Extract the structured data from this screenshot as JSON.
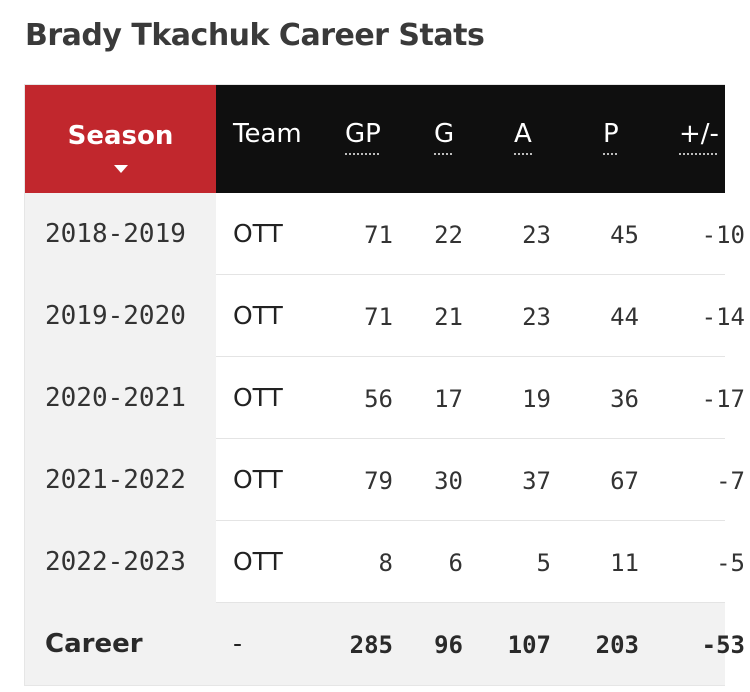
{
  "title": "Brady Tkachuk Career Stats",
  "headers": {
    "season": "Season",
    "team": "Team",
    "gp": "GP",
    "g": "G",
    "a": "A",
    "p": "P",
    "plus_minus": "+/-"
  },
  "rows": [
    {
      "season": "2018-2019",
      "team": "OTT",
      "gp": "71",
      "g": "22",
      "a": "23",
      "p": "45",
      "plus_minus": "-10"
    },
    {
      "season": "2019-2020",
      "team": "OTT",
      "gp": "71",
      "g": "21",
      "a": "23",
      "p": "44",
      "plus_minus": "-14"
    },
    {
      "season": "2020-2021",
      "team": "OTT",
      "gp": "56",
      "g": "17",
      "a": "19",
      "p": "36",
      "plus_minus": "-17"
    },
    {
      "season": "2021-2022",
      "team": "OTT",
      "gp": "79",
      "g": "30",
      "a": "37",
      "p": "67",
      "plus_minus": "-7"
    },
    {
      "season": "2022-2023",
      "team": "OTT",
      "gp": "8",
      "g": "6",
      "a": "5",
      "p": "11",
      "plus_minus": "-5"
    }
  ],
  "career": {
    "season": "Career",
    "team": "-",
    "gp": "285",
    "g": "96",
    "a": "107",
    "p": "203",
    "plus_minus": "-53"
  },
  "colors": {
    "sort_header_bg": "#c1272d",
    "header_bg": "#0f0f0f",
    "season_column_bg": "#f2f2f2"
  },
  "icons": {
    "sort": "caret-down-icon"
  }
}
